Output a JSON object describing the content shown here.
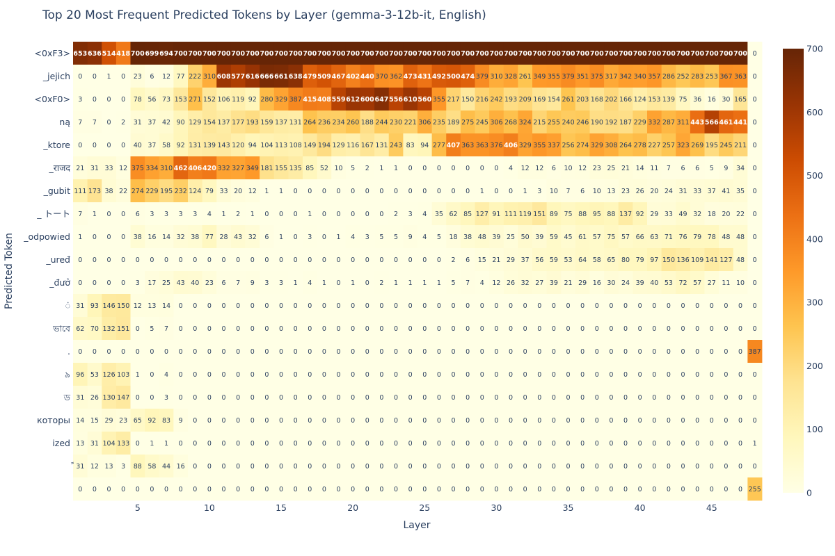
{
  "chart_data": {
    "type": "heatmap",
    "title": "Top 20 Most Frequent Predicted Tokens by Layer (gemma-3-12b-it, English)",
    "xlabel": "Layer",
    "ylabel": "Predicted Token",
    "x": [
      1,
      2,
      3,
      4,
      5,
      6,
      7,
      8,
      9,
      10,
      11,
      12,
      13,
      14,
      15,
      16,
      17,
      18,
      19,
      20,
      21,
      22,
      23,
      24,
      25,
      26,
      27,
      28,
      29,
      30,
      31,
      32,
      33,
      34,
      35,
      36,
      37,
      38,
      39,
      40,
      41,
      42,
      43,
      44,
      45,
      46,
      47,
      48
    ],
    "x_tick_labels": [
      "5",
      "10",
      "15",
      "20",
      "25",
      "30",
      "35",
      "40",
      "45"
    ],
    "y": [
      "<0xF3>",
      "_jejich",
      "<0xF0>",
      "ną",
      "_ktore",
      "_राजद",
      "_gubit",
      "_ トート",
      "_odpowied",
      "_uređ",
      "_đưở",
      "ं",
      "ভাবে",
      ".",
      "৯",
      "ড",
      "которы",
      "ized",
      "ً",
      ""
    ],
    "z": [
      [
        653,
        636,
        514,
        418,
        700,
        699,
        694,
        700,
        700,
        700,
        700,
        700,
        700,
        700,
        700,
        700,
        700,
        700,
        700,
        700,
        700,
        700,
        700,
        700,
        700,
        700,
        700,
        700,
        700,
        700,
        700,
        700,
        700,
        700,
        700,
        700,
        700,
        700,
        700,
        700,
        700,
        700,
        700,
        700,
        700,
        700,
        700,
        0
      ],
      [
        0,
        0,
        1,
        0,
        23,
        6,
        12,
        77,
        222,
        310,
        608,
        577,
        616,
        666,
        661,
        638,
        479,
        509,
        467,
        402,
        440,
        370,
        362,
        473,
        431,
        492,
        500,
        474,
        379,
        310,
        328,
        261,
        349,
        355,
        379,
        351,
        375,
        317,
        342,
        340,
        357,
        286,
        252,
        283,
        253,
        367,
        363,
        0
      ],
      [
        3,
        0,
        0,
        0,
        78,
        56,
        73,
        153,
        271,
        152,
        106,
        119,
        92,
        280,
        329,
        387,
        415,
        408,
        559,
        612,
        600,
        647,
        556,
        610,
        560,
        355,
        217,
        150,
        216,
        242,
        193,
        209,
        169,
        154,
        261,
        203,
        168,
        202,
        166,
        124,
        153,
        139,
        75,
        36,
        16,
        30,
        165,
        0
      ],
      [
        7,
        7,
        0,
        2,
        31,
        37,
        42,
        90,
        129,
        154,
        137,
        177,
        193,
        159,
        137,
        131,
        264,
        236,
        234,
        260,
        188,
        244,
        230,
        221,
        306,
        235,
        189,
        275,
        245,
        306,
        268,
        324,
        215,
        255,
        240,
        246,
        190,
        192,
        187,
        229,
        332,
        287,
        311,
        443,
        566,
        461,
        441,
        0
      ],
      [
        0,
        0,
        0,
        0,
        40,
        37,
        58,
        92,
        131,
        139,
        143,
        120,
        94,
        104,
        113,
        108,
        149,
        194,
        129,
        116,
        167,
        131,
        243,
        83,
        94,
        277,
        407,
        363,
        363,
        376,
        406,
        329,
        355,
        337,
        256,
        274,
        329,
        308,
        264,
        278,
        227,
        257,
        323,
        269,
        195,
        245,
        211,
        0
      ],
      [
        21,
        31,
        33,
        12,
        375,
        334,
        310,
        462,
        406,
        420,
        332,
        327,
        349,
        181,
        155,
        135,
        85,
        52,
        10,
        5,
        2,
        1,
        1,
        0,
        0,
        0,
        0,
        0,
        0,
        0,
        4,
        12,
        12,
        6,
        10,
        12,
        23,
        25,
        21,
        14,
        11,
        7,
        6,
        6,
        5,
        9,
        34,
        0
      ],
      [
        111,
        173,
        38,
        22,
        274,
        229,
        195,
        232,
        124,
        79,
        33,
        20,
        12,
        1,
        1,
        0,
        0,
        0,
        0,
        0,
        0,
        0,
        0,
        0,
        0,
        0,
        0,
        0,
        1,
        0,
        0,
        1,
        3,
        10,
        7,
        6,
        10,
        13,
        23,
        26,
        20,
        24,
        31,
        33,
        37,
        41,
        35,
        0
      ],
      [
        7,
        1,
        0,
        0,
        6,
        3,
        3,
        3,
        3,
        4,
        1,
        2,
        1,
        0,
        0,
        0,
        1,
        0,
        0,
        0,
        0,
        0,
        2,
        3,
        4,
        35,
        62,
        85,
        127,
        91,
        111,
        119,
        151,
        89,
        75,
        88,
        95,
        88,
        137,
        92,
        29,
        33,
        49,
        32,
        18,
        20,
        22,
        0
      ],
      [
        1,
        0,
        0,
        0,
        38,
        16,
        14,
        32,
        38,
        77,
        28,
        43,
        32,
        6,
        1,
        0,
        3,
        0,
        1,
        4,
        3,
        5,
        5,
        9,
        4,
        5,
        18,
        38,
        48,
        39,
        25,
        50,
        39,
        59,
        45,
        61,
        57,
        75,
        57,
        66,
        63,
        71,
        76,
        79,
        78,
        48,
        48,
        0
      ],
      [
        0,
        0,
        0,
        0,
        0,
        0,
        0,
        0,
        0,
        0,
        0,
        0,
        0,
        0,
        0,
        0,
        0,
        0,
        0,
        0,
        0,
        0,
        0,
        0,
        0,
        0,
        2,
        6,
        15,
        21,
        29,
        37,
        56,
        59,
        53,
        64,
        58,
        65,
        80,
        79,
        97,
        150,
        136,
        109,
        141,
        127,
        48,
        0
      ],
      [
        0,
        0,
        0,
        0,
        3,
        17,
        25,
        43,
        40,
        23,
        6,
        7,
        9,
        3,
        3,
        1,
        4,
        1,
        0,
        1,
        0,
        2,
        1,
        1,
        1,
        1,
        5,
        7,
        4,
        12,
        26,
        32,
        27,
        39,
        21,
        29,
        16,
        30,
        24,
        39,
        40,
        53,
        72,
        57,
        27,
        11,
        10,
        0
      ],
      [
        31,
        93,
        146,
        150,
        12,
        13,
        14,
        0,
        0,
        0,
        0,
        0,
        0,
        0,
        0,
        0,
        0,
        0,
        0,
        0,
        0,
        0,
        0,
        0,
        0,
        0,
        0,
        0,
        0,
        0,
        0,
        0,
        0,
        0,
        0,
        0,
        0,
        0,
        0,
        0,
        0,
        0,
        0,
        0,
        0,
        0,
        0,
        0
      ],
      [
        62,
        70,
        132,
        151,
        0,
        5,
        7,
        0,
        0,
        0,
        0,
        0,
        0,
        0,
        0,
        0,
        0,
        0,
        0,
        0,
        0,
        0,
        0,
        0,
        0,
        0,
        0,
        0,
        0,
        0,
        0,
        0,
        0,
        0,
        0,
        0,
        0,
        0,
        0,
        0,
        0,
        0,
        0,
        0,
        0,
        0,
        0,
        0
      ],
      [
        0,
        0,
        0,
        0,
        0,
        0,
        0,
        0,
        0,
        0,
        0,
        0,
        0,
        0,
        0,
        0,
        0,
        0,
        0,
        0,
        0,
        0,
        0,
        0,
        0,
        0,
        0,
        0,
        0,
        0,
        0,
        0,
        0,
        0,
        0,
        0,
        0,
        0,
        0,
        0,
        0,
        0,
        0,
        0,
        0,
        0,
        0,
        387
      ],
      [
        96,
        53,
        126,
        103,
        1,
        0,
        4,
        0,
        0,
        0,
        0,
        0,
        0,
        0,
        0,
        0,
        0,
        0,
        0,
        0,
        0,
        0,
        0,
        0,
        0,
        0,
        0,
        0,
        0,
        0,
        0,
        0,
        0,
        0,
        0,
        0,
        0,
        0,
        0,
        0,
        0,
        0,
        0,
        0,
        0,
        0,
        0,
        0
      ],
      [
        31,
        26,
        130,
        147,
        0,
        0,
        3,
        0,
        0,
        0,
        0,
        0,
        0,
        0,
        0,
        0,
        0,
        0,
        0,
        0,
        0,
        0,
        0,
        0,
        0,
        0,
        0,
        0,
        0,
        0,
        0,
        0,
        0,
        0,
        0,
        0,
        0,
        0,
        0,
        0,
        0,
        0,
        0,
        0,
        0,
        0,
        0,
        0
      ],
      [
        14,
        15,
        29,
        23,
        65,
        92,
        83,
        9,
        0,
        0,
        0,
        0,
        0,
        0,
        0,
        0,
        0,
        0,
        0,
        0,
        0,
        0,
        0,
        0,
        0,
        0,
        0,
        0,
        0,
        0,
        0,
        0,
        0,
        0,
        0,
        0,
        0,
        0,
        0,
        0,
        0,
        0,
        0,
        0,
        0,
        0,
        0,
        0
      ],
      [
        13,
        31,
        104,
        133,
        0,
        1,
        1,
        0,
        0,
        0,
        0,
        0,
        0,
        0,
        0,
        0,
        0,
        0,
        0,
        0,
        0,
        0,
        0,
        0,
        0,
        0,
        0,
        0,
        0,
        0,
        0,
        0,
        0,
        0,
        0,
        0,
        0,
        0,
        0,
        0,
        0,
        0,
        0,
        0,
        0,
        0,
        0,
        1
      ],
      [
        31,
        12,
        13,
        3,
        88,
        58,
        44,
        16,
        0,
        0,
        0,
        0,
        0,
        0,
        0,
        0,
        0,
        0,
        0,
        0,
        0,
        0,
        0,
        0,
        0,
        0,
        0,
        0,
        0,
        0,
        0,
        0,
        0,
        0,
        0,
        0,
        0,
        0,
        0,
        0,
        0,
        0,
        0,
        0,
        0,
        0,
        0,
        0
      ],
      [
        0,
        0,
        0,
        0,
        0,
        0,
        0,
        0,
        0,
        0,
        0,
        0,
        0,
        0,
        0,
        0,
        0,
        0,
        0,
        0,
        0,
        0,
        0,
        0,
        0,
        0,
        0,
        0,
        0,
        0,
        0,
        0,
        0,
        0,
        0,
        0,
        0,
        0,
        0,
        0,
        0,
        0,
        0,
        0,
        0,
        0,
        0,
        255
      ]
    ],
    "zmin": 0,
    "zmax": 700,
    "colorscale": [
      "#ffffe5",
      "#fff7bc",
      "#fee391",
      "#fec44f",
      "#fe9929",
      "#ec7014",
      "#cc4c02",
      "#993404",
      "#662506"
    ],
    "colorbar_ticks": [
      0,
      100,
      200,
      300,
      400,
      500,
      600,
      700
    ],
    "colorbar_tick_labels": [
      "0",
      "100",
      "200",
      "300",
      "400",
      "500",
      "600",
      "700"
    ],
    "annotation_text_dark": "#2a3f5f",
    "annotation_text_light": "#ffffff"
  }
}
